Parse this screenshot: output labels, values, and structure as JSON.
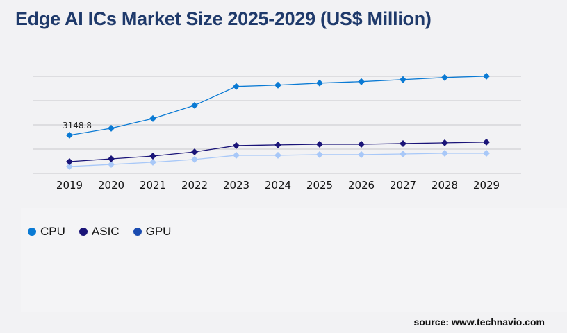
{
  "title": "Edge AI ICs Market Size 2025-2029 (US$ Million)",
  "source": "source: www.technavio.com",
  "chart_data": {
    "type": "line",
    "x": [
      "2019",
      "2020",
      "2021",
      "2022",
      "2023",
      "2024",
      "2025",
      "2026",
      "2027",
      "2028",
      "2029"
    ],
    "ylim": [
      0,
      8000
    ],
    "grid": true,
    "legend_placement": "bottom-left",
    "series": [
      {
        "name": "CPU",
        "color": "#0a7ad4",
        "legend_color": "#0a7ad4",
        "values": [
          3148.8,
          3720,
          4520,
          5610,
          7160,
          7270,
          7440,
          7560,
          7730,
          7900,
          8010
        ]
      },
      {
        "name": "ASIC",
        "color": "#1a1478",
        "legend_color": "#1a1478",
        "values": [
          970,
          1200,
          1430,
          1770,
          2290,
          2350,
          2400,
          2400,
          2460,
          2520,
          2580
        ]
      },
      {
        "name": "GPU",
        "color": "#a8c8f8",
        "legend_color": "#1a4bb0",
        "values": [
          570,
          740,
          920,
          1150,
          1490,
          1490,
          1550,
          1550,
          1600,
          1660,
          1660
        ]
      }
    ],
    "annotations": [
      {
        "series": "CPU",
        "x": "2019",
        "label": "3148.8"
      }
    ]
  }
}
